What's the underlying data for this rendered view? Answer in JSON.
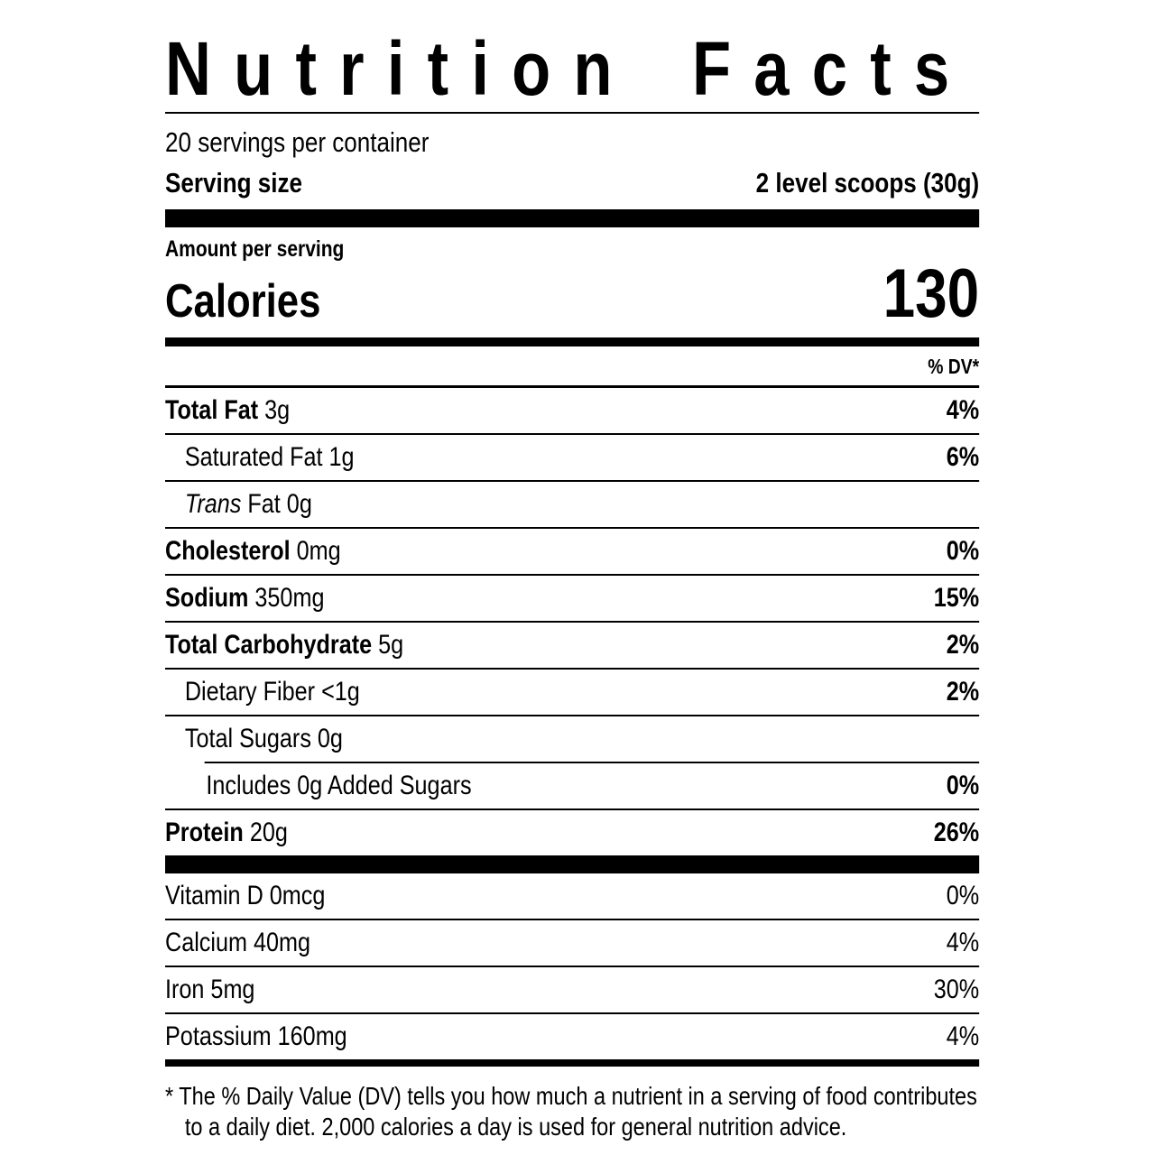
{
  "label": {
    "title": "Nutrition Facts",
    "servings_per_container": "20 servings per container",
    "serving_size_label": "Serving size",
    "serving_size_value": "2 level scoops (30g)",
    "amount_per_serving": "Amount per serving",
    "calories_label": "Calories",
    "calories_value": "130",
    "dv_header": "% DV*",
    "colors": {
      "ink": "#000000",
      "background": "#ffffff"
    },
    "nutrients": [
      {
        "label": "Total Fat",
        "label_bold": true,
        "label_italic": false,
        "value": "3g",
        "dv": "4%",
        "dv_bold": true,
        "indent": 0,
        "divider_after": "full"
      },
      {
        "label": "",
        "label_bold": false,
        "label_italic": false,
        "value": "Saturated Fat 1g",
        "dv": "6%",
        "dv_bold": true,
        "indent": 1,
        "divider_after": "full"
      },
      {
        "label": "Trans",
        "label_bold": false,
        "label_italic": true,
        "value": "Fat 0g",
        "dv": "",
        "dv_bold": false,
        "indent": 1,
        "divider_after": "full"
      },
      {
        "label": "Cholesterol",
        "label_bold": true,
        "label_italic": false,
        "value": "0mg",
        "dv": "0%",
        "dv_bold": true,
        "indent": 0,
        "divider_after": "full"
      },
      {
        "label": "Sodium",
        "label_bold": true,
        "label_italic": false,
        "value": "350mg",
        "dv": "15%",
        "dv_bold": true,
        "indent": 0,
        "divider_after": "full"
      },
      {
        "label": "Total Carbohydrate",
        "label_bold": true,
        "label_italic": false,
        "value": "5g",
        "dv": "2%",
        "dv_bold": true,
        "indent": 0,
        "divider_after": "full"
      },
      {
        "label": "",
        "label_bold": false,
        "label_italic": false,
        "value": "Dietary Fiber <1g",
        "dv": "2%",
        "dv_bold": true,
        "indent": 1,
        "divider_after": "full"
      },
      {
        "label": "",
        "label_bold": false,
        "label_italic": false,
        "value": "Total Sugars 0g",
        "dv": "",
        "dv_bold": false,
        "indent": 1,
        "divider_after": "indent"
      },
      {
        "label": "",
        "label_bold": false,
        "label_italic": false,
        "value": "Includes 0g Added Sugars",
        "dv": "0%",
        "dv_bold": true,
        "indent": 2,
        "divider_after": "full"
      },
      {
        "label": "Protein",
        "label_bold": true,
        "label_italic": false,
        "value": "20g",
        "dv": "26%",
        "dv_bold": true,
        "indent": 0,
        "divider_after": "none"
      }
    ],
    "vitamins": [
      {
        "label": "",
        "label_bold": false,
        "label_italic": false,
        "value": "Vitamin D 0mcg",
        "dv": "0%",
        "dv_bold": false,
        "indent": 0,
        "divider_after": "full"
      },
      {
        "label": "",
        "label_bold": false,
        "label_italic": false,
        "value": "Calcium 40mg",
        "dv": "4%",
        "dv_bold": false,
        "indent": 0,
        "divider_after": "full"
      },
      {
        "label": "",
        "label_bold": false,
        "label_italic": false,
        "value": "Iron 5mg",
        "dv": "30%",
        "dv_bold": false,
        "indent": 0,
        "divider_after": "full"
      },
      {
        "label": "",
        "label_bold": false,
        "label_italic": false,
        "value": "Potassium 160mg",
        "dv": "4%",
        "dv_bold": false,
        "indent": 0,
        "divider_after": "none"
      }
    ],
    "footnote": "* The % Daily Value (DV) tells you how much a nutrient in a serving of food contributes to a daily diet. 2,000 calories a day is used for general nutrition advice."
  }
}
